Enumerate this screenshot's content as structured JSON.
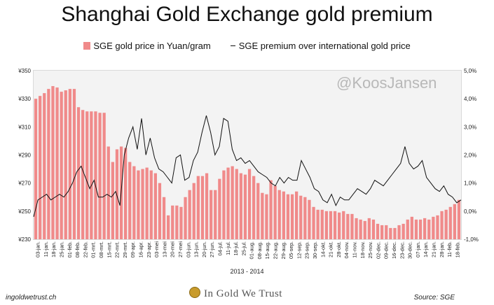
{
  "title": "Shanghai Gold Exchange gold premium",
  "legend": {
    "bar_label": "SGE gold price in Yuan/gram",
    "line_label": "SGE premium over international gold price"
  },
  "watermark": "@KoosJansen",
  "x_caption": "2013 - 2014",
  "footer": {
    "left": "ingoldwetrust.ch",
    "brand": "In Gold We Trust",
    "source": "Source: SGE"
  },
  "colors": {
    "bars": "#f08a8a",
    "line": "#111111",
    "plot_bg": "#f3f3f3"
  },
  "chart_data": {
    "type": "bar+line",
    "x_ticks": [
      "03-jan.",
      "11-jan.",
      "18-jan.",
      "25-jan.",
      "01-feb.",
      "08-feb.",
      "22-feb.",
      "01-mrt.",
      "08-mrt.",
      "15-mrt.",
      "22-mrt.",
      "29-mrt.",
      "09-apr.",
      "16-apr.",
      "23-apr.",
      "03-mei",
      "13-mei",
      "20-mei",
      "27-mei",
      "03-jun.",
      "13-jun.",
      "20-jun.",
      "27-jun.",
      "04-jul.",
      "11-jul.",
      "18-jul.",
      "25-jul.",
      "01-aug.",
      "08-aug.",
      "15-aug.",
      "22-aug.",
      "29-aug.",
      "05-sep.",
      "12-sep.",
      "23-sep.",
      "30-sep.",
      "14-okt.",
      "21-okt.",
      "28-okt.",
      "04-nov.",
      "11-nov.",
      "18-nov.",
      "25-nov.",
      "02-dec.",
      "09-dec.",
      "16-dec.",
      "23-dec.",
      "30-dec.",
      "07-jan.",
      "14-jan.",
      "21-jan.",
      "28-jan.",
      "11-feb.",
      "18-feb."
    ],
    "y_left": {
      "ticks": [
        "¥230",
        "¥250",
        "¥270",
        "¥290",
        "¥310",
        "¥330",
        "¥350"
      ],
      "min": 230,
      "max": 350
    },
    "y_right": {
      "ticks": [
        "-1,0%",
        "0,0%",
        "1,0%",
        "2,0%",
        "3,0%",
        "4,0%",
        "5,0%"
      ],
      "min": -1.0,
      "max": 5.0
    },
    "series": [
      {
        "name": "SGE gold price in Yuan/gram",
        "type": "bar",
        "axis": "left",
        "values": [
          330,
          332,
          334,
          337,
          339,
          338,
          335,
          336,
          337,
          337,
          324,
          322,
          321,
          321,
          321,
          320,
          320,
          296,
          285,
          294,
          296,
          295,
          285,
          282,
          279,
          280,
          281,
          279,
          277,
          270,
          260,
          247,
          254,
          254,
          253,
          260,
          265,
          270,
          275,
          275,
          277,
          265,
          265,
          273,
          279,
          281,
          282,
          280,
          277,
          276,
          280,
          275,
          270,
          263,
          262,
          272,
          268,
          265,
          264,
          262,
          262,
          264,
          261,
          260,
          258,
          253,
          251,
          251,
          250,
          250,
          250,
          249,
          250,
          248,
          248,
          245,
          244,
          243,
          245,
          244,
          241,
          240,
          240,
          238,
          238,
          240,
          241,
          244,
          246,
          244,
          244,
          245,
          244,
          246,
          247,
          250,
          251,
          253,
          255,
          258
        ]
      },
      {
        "name": "SGE premium over international gold price",
        "type": "line",
        "axis": "right",
        "values": [
          -0.2,
          0.4,
          0.5,
          0.6,
          0.4,
          0.5,
          0.6,
          0.5,
          0.7,
          1.0,
          1.4,
          1.6,
          1.2,
          0.8,
          1.1,
          0.5,
          0.5,
          0.6,
          0.5,
          0.7,
          0.2,
          2.0,
          2.6,
          3.0,
          2.2,
          3.3,
          2.0,
          2.6,
          1.9,
          1.5,
          1.4,
          1.2,
          1.0,
          1.9,
          2.0,
          1.1,
          1.2,
          1.8,
          2.1,
          2.8,
          3.4,
          2.8,
          2.0,
          2.3,
          3.3,
          3.2,
          2.2,
          1.8,
          1.9,
          1.7,
          1.8,
          1.6,
          1.4,
          1.3,
          1.2,
          1.0,
          0.9,
          1.2,
          1.0,
          1.2,
          1.1,
          1.1,
          1.8,
          1.5,
          1.2,
          0.8,
          0.7,
          0.4,
          0.3,
          0.6,
          0.2,
          0.5,
          0.4,
          0.4,
          0.6,
          0.8,
          0.7,
          0.6,
          0.8,
          1.1,
          1.0,
          0.9,
          1.1,
          1.3,
          1.5,
          1.7,
          2.3,
          1.7,
          1.5,
          1.6,
          1.8,
          1.2,
          1.0,
          0.8,
          0.7,
          0.9,
          0.6,
          0.5,
          0.3,
          0.4
        ]
      }
    ]
  }
}
